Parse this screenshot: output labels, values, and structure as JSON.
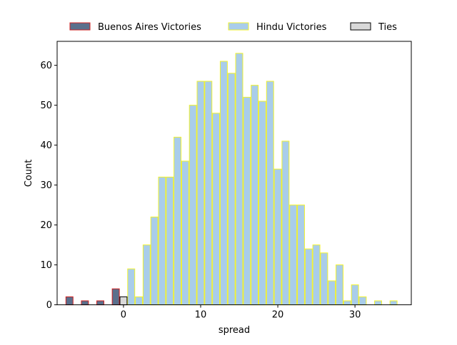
{
  "chart_data": {
    "type": "bar",
    "xlabel": "spread",
    "ylabel": "Count",
    "xlim": [
      -8.6,
      37.3
    ],
    "ylim": [
      0,
      66
    ],
    "xticks": [
      0,
      10,
      20,
      30
    ],
    "yticks": [
      0,
      10,
      20,
      30,
      40,
      50,
      60
    ],
    "grid": false,
    "legend_position": "top (above plot, horizontal)",
    "series": [
      {
        "name": "Buenos Aires Victories",
        "fill": "#5a6f8c",
        "edge": "#d02020",
        "bars": [
          {
            "x": -7,
            "count": 2
          },
          {
            "x": -5,
            "count": 1
          },
          {
            "x": -3,
            "count": 1
          },
          {
            "x": -1,
            "count": 4
          }
        ]
      },
      {
        "name": "Hindu Victories",
        "fill": "#a9cdea",
        "edge": "#f2f22e",
        "bars": [
          {
            "x": 1,
            "count": 9
          },
          {
            "x": 2,
            "count": 2
          },
          {
            "x": 3,
            "count": 15
          },
          {
            "x": 4,
            "count": 22
          },
          {
            "x": 5,
            "count": 32
          },
          {
            "x": 6,
            "count": 32
          },
          {
            "x": 7,
            "count": 42
          },
          {
            "x": 8,
            "count": 36
          },
          {
            "x": 9,
            "count": 50
          },
          {
            "x": 10,
            "count": 56
          },
          {
            "x": 11,
            "count": 56
          },
          {
            "x": 12,
            "count": 48
          },
          {
            "x": 13,
            "count": 61
          },
          {
            "x": 14,
            "count": 58
          },
          {
            "x": 15,
            "count": 63
          },
          {
            "x": 16,
            "count": 52
          },
          {
            "x": 17,
            "count": 55
          },
          {
            "x": 18,
            "count": 51
          },
          {
            "x": 19,
            "count": 56
          },
          {
            "x": 20,
            "count": 34
          },
          {
            "x": 21,
            "count": 41
          },
          {
            "x": 22,
            "count": 25
          },
          {
            "x": 23,
            "count": 25
          },
          {
            "x": 24,
            "count": 14
          },
          {
            "x": 25,
            "count": 15
          },
          {
            "x": 26,
            "count": 13
          },
          {
            "x": 27,
            "count": 6
          },
          {
            "x": 28,
            "count": 10
          },
          {
            "x": 29,
            "count": 1
          },
          {
            "x": 30,
            "count": 5
          },
          {
            "x": 31,
            "count": 2
          },
          {
            "x": 33,
            "count": 1
          },
          {
            "x": 35,
            "count": 1
          }
        ]
      },
      {
        "name": "Ties",
        "fill": "#d9d9d9",
        "edge": "#000000",
        "bars": [
          {
            "x": 0,
            "count": 2
          }
        ]
      }
    ]
  }
}
